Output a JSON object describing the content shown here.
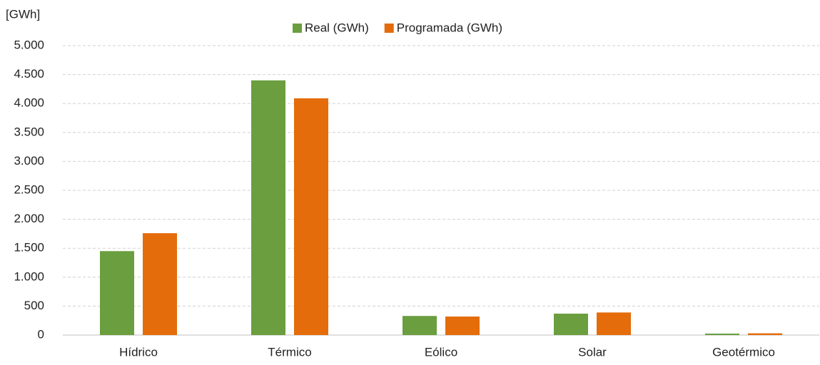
{
  "chart_data": {
    "type": "bar",
    "ylabel": "[GWh]",
    "categories": [
      "Hídrico",
      "Térmico",
      "Eólico",
      "Solar",
      "Geotérmico"
    ],
    "series": [
      {
        "name": "Real (GWh)",
        "color": "#6a9e3f",
        "values": [
          1450,
          4400,
          330,
          370,
          25
        ]
      },
      {
        "name": "Programada (GWh)",
        "color": "#e46c0a",
        "values": [
          1760,
          4090,
          320,
          390,
          30
        ]
      }
    ],
    "ylim": [
      0,
      5000
    ],
    "yticks": [
      0,
      500,
      {
        "value": 1000,
        "label": "1.000"
      },
      {
        "value": 1500,
        "label": "1.500"
      },
      {
        "value": 2000,
        "label": "2.000"
      },
      {
        "value": 2500,
        "label": "2.500"
      },
      {
        "value": 3000,
        "label": "3.000"
      },
      {
        "value": 3500,
        "label": "3.500"
      },
      {
        "value": 4000,
        "label": "4.000"
      },
      {
        "value": 4500,
        "label": "4.500"
      },
      {
        "value": 5000,
        "label": "5.000"
      }
    ],
    "grid": true,
    "legend": "top"
  }
}
